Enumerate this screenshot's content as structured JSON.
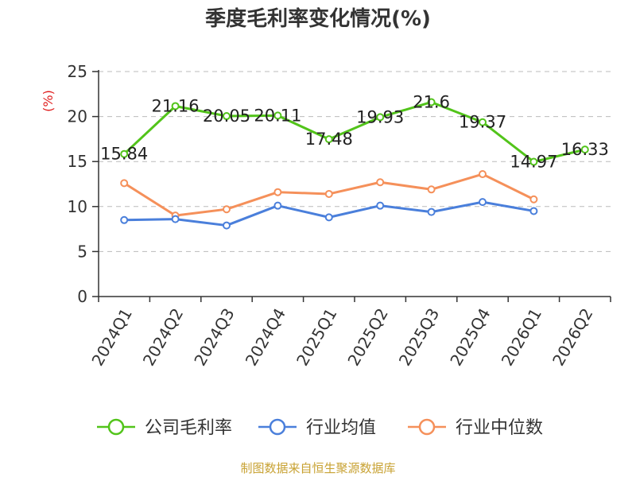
{
  "chart_data": {
    "type": "line",
    "title": "季度毛利率变化情况(%)",
    "unit_label": "(%)",
    "categories": [
      "2024Q1",
      "2024Q2",
      "2024Q3",
      "2024Q4",
      "2025Q1",
      "2025Q2",
      "2025Q3",
      "2025Q4",
      "2026Q1",
      "2026Q2"
    ],
    "ylim": [
      0,
      25
    ],
    "yticks": [
      0,
      5,
      10,
      15,
      20,
      25
    ],
    "grid": true,
    "legend_position": "bottom",
    "series": [
      {
        "name": "公司毛利率",
        "color": "#52c41a",
        "values": [
          15.84,
          21.16,
          20.05,
          20.11,
          17.48,
          19.93,
          21.6,
          19.37,
          14.97,
          16.33
        ],
        "labels": [
          "15.84",
          "21.16",
          "20.05",
          "20.11",
          "17.48",
          "19.93",
          "21.6",
          "19.37",
          "14.97",
          "16.33"
        ]
      },
      {
        "name": "行业均值",
        "color": "#4a7fdb",
        "values": [
          8.5,
          8.6,
          7.9,
          10.1,
          8.8,
          10.1,
          9.4,
          10.5,
          9.5,
          null
        ]
      },
      {
        "name": "行业中位数",
        "color": "#f5905a",
        "values": [
          12.6,
          9.0,
          9.7,
          11.6,
          11.4,
          12.7,
          11.9,
          13.6,
          10.8,
          null
        ]
      }
    ]
  },
  "source": "制图数据来自恒生聚源数据库"
}
